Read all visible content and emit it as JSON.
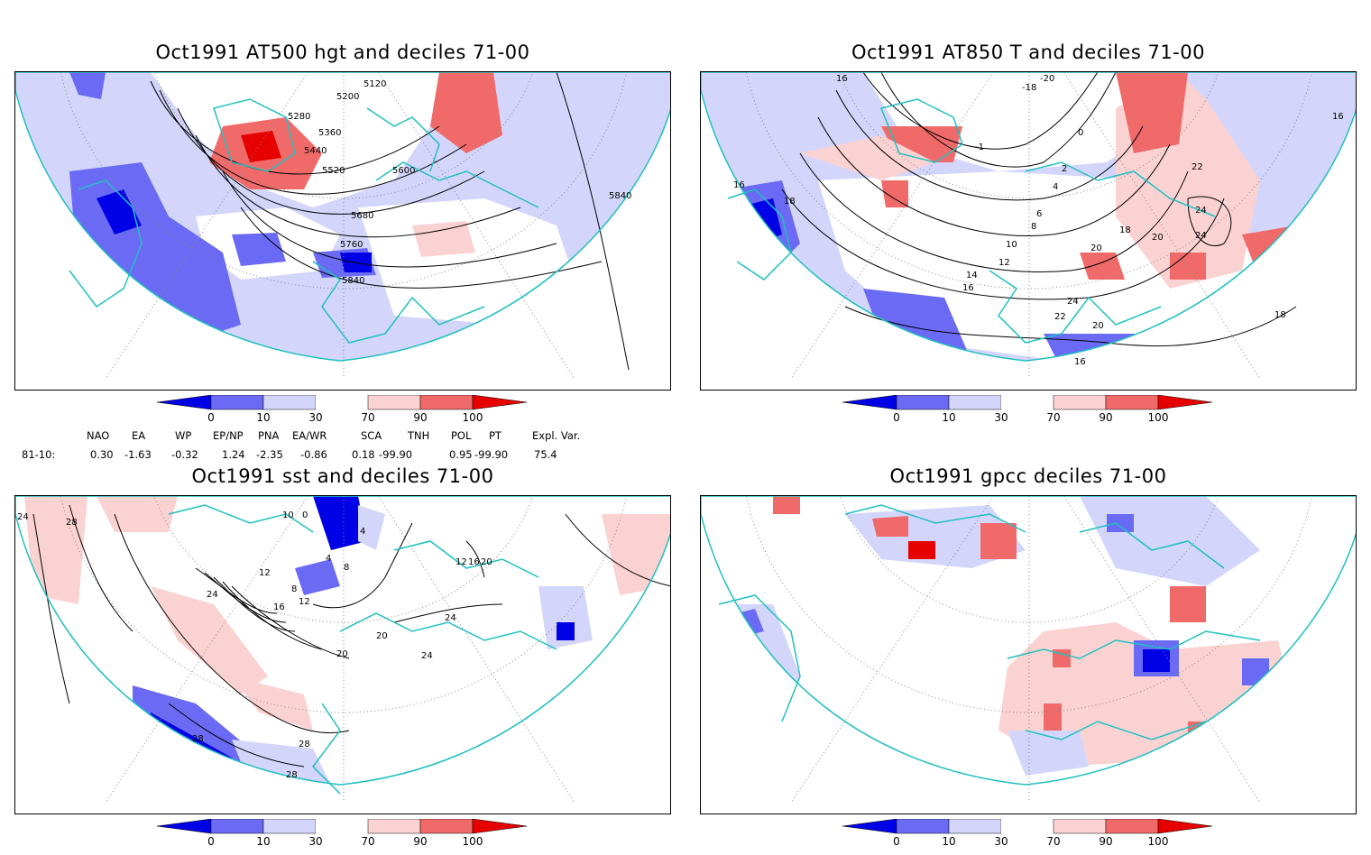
{
  "panels": [
    {
      "title": "Oct1991 AT500 hgt and deciles 71-00",
      "labels": [
        "5120",
        "5200",
        "5280",
        "5360",
        "5440",
        "5520",
        "5600",
        "5680",
        "5760",
        "5840",
        "5840"
      ]
    },
    {
      "title": "Oct1991 AT850 T and deciles 71-00",
      "labels": [
        "16",
        "-20",
        "-18",
        "-1",
        "0",
        "2",
        "4",
        "6",
        "8",
        "10",
        "12",
        "14",
        "16",
        "18",
        "16",
        "18",
        "20",
        "20",
        "22",
        "24",
        "24",
        "16",
        "20",
        "22",
        "24",
        "18",
        "16"
      ]
    },
    {
      "title": "Oct1991 sst and deciles 71-00",
      "labels": [
        "24",
        "28",
        "0",
        "10",
        "4",
        "4",
        "8",
        "8",
        "12",
        "16",
        "12",
        "20",
        "24",
        "24",
        "20",
        "28",
        "28",
        "28",
        "12",
        "16",
        "20",
        "24"
      ]
    },
    {
      "title": "Oct1991 gpcc deciles 71-00",
      "labels": []
    }
  ],
  "colorbar": {
    "ticks": [
      "0",
      "10",
      "30",
      "70",
      "90",
      "100"
    ],
    "colors": [
      "#0000e6",
      "#6a6af5",
      "#d3d6fa",
      "#ffffff",
      "#fbd2d2",
      "#f06a6a",
      "#e60000"
    ]
  },
  "indices": {
    "headers": [
      "NAO",
      "EA",
      "WP",
      "EP/NP",
      "PNA",
      "EA/WR",
      "SCA",
      "TNH",
      "POL",
      "PT",
      "Expl. Var."
    ],
    "row_label": "81-10:",
    "values": [
      "0.30",
      "-1.63",
      "-0.32",
      "1.24",
      "-2.35",
      "-0.86",
      "0.18",
      "-99.90",
      "0.95",
      "-99.90",
      "75.4"
    ]
  },
  "colors": {
    "coast": "#20c0c0",
    "grid": "#888888"
  }
}
